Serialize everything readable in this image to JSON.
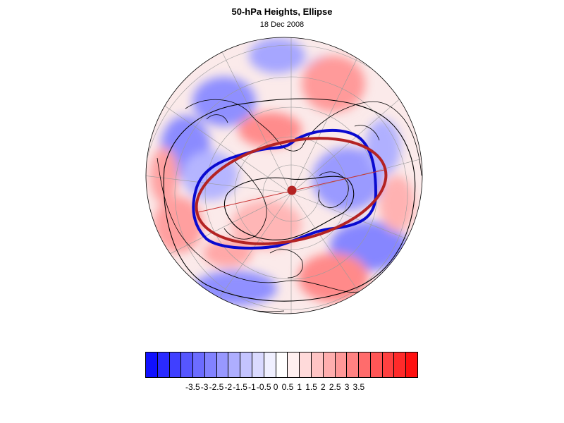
{
  "header": {
    "title": "50-hPa Heights, Ellipse",
    "subtitle": "18 Dec 2008"
  },
  "map": {
    "projection": "polar stereographic",
    "hemisphere": "northern",
    "overlays": [
      "50-hPa height anomaly shading",
      "height contour (blue)",
      "fitted ellipse (red)",
      "ellipse center marker",
      "ellipse major axis line",
      "coastlines",
      "lat-lon grid"
    ],
    "colors": {
      "height_contour": "#0a0ad0",
      "ellipse": "#b42323",
      "center_marker": "#b42323",
      "major_axis": "#c83232",
      "coastline": "#000000",
      "grid": "#9a9a9a"
    }
  },
  "colorbar": {
    "colors": [
      "#1010ff",
      "#2a2aff",
      "#4040ff",
      "#5656ff",
      "#6c6cff",
      "#8282ff",
      "#9898ff",
      "#aeaeff",
      "#c4c4ff",
      "#dadaff",
      "#f0f0ff",
      "#ffffff",
      "#fff0f0",
      "#ffdada",
      "#ffc4c4",
      "#ffaeae",
      "#ff9898",
      "#ff8282",
      "#ff6c6c",
      "#ff5656",
      "#ff4040",
      "#ff2a2a",
      "#ff1010"
    ],
    "ticks": [
      "-3.5",
      "-3",
      "-2.5",
      "-2",
      "-1.5",
      "-1",
      "-0.5",
      "0",
      "0.5",
      "1",
      "1.5",
      "2",
      "2.5",
      "3",
      "3.5"
    ]
  }
}
